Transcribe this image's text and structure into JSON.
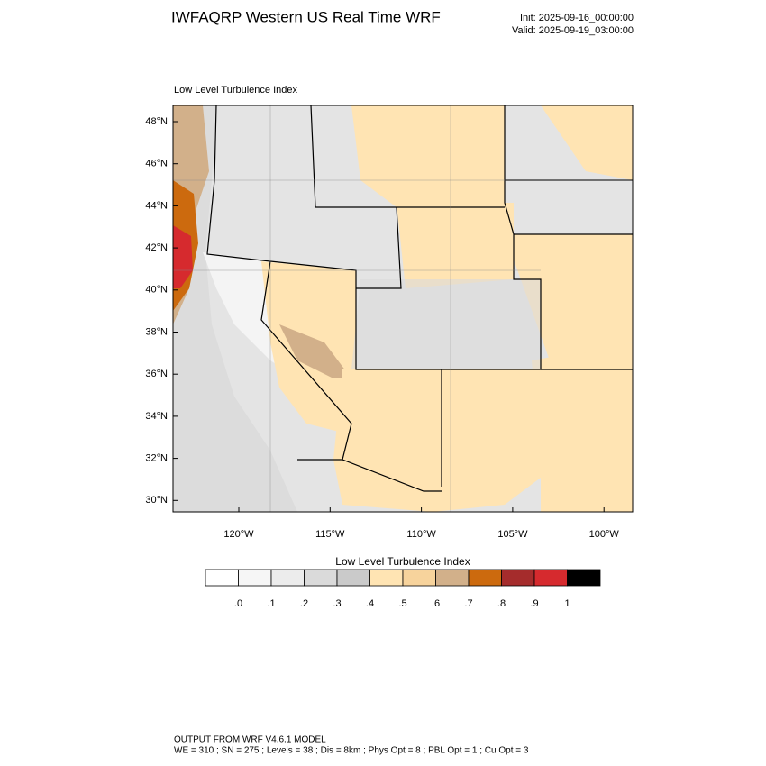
{
  "header": {
    "title": "IWFAQRP Western US Real Time WRF",
    "init": "Init: 2025-09-16_00:00:00",
    "valid": "Valid: 2025-09-19_03:00:00"
  },
  "map": {
    "subtitle": "Low Level Turbulence Index",
    "lat_labels": [
      "48°N",
      "46°N",
      "44°N",
      "42°N",
      "40°N",
      "38°N",
      "36°N",
      "34°N",
      "32°N",
      "30°N"
    ],
    "lon_labels": [
      "120°W",
      "115°W",
      "110°W",
      "105°W",
      "100°W"
    ]
  },
  "colorbar": {
    "title": "Low Level Turbulence Index",
    "colors": [
      "#ffffff",
      "#f6f6f6",
      "#ececec",
      "#dadada",
      "#cacaca",
      "#ffe4b3",
      "#f7d39c",
      "#d2b08a",
      "#cc6a0e",
      "#a52c2c",
      "#d62a2e",
      "#000000"
    ],
    "labels": [
      ".0",
      ".1",
      ".2",
      ".3",
      ".4",
      ".5",
      ".6",
      ".7",
      ".8",
      ".9",
      "1"
    ]
  },
  "footer": {
    "line1": "OUTPUT FROM WRF V4.6.1 MODEL",
    "line2": "WE = 310 ; SN = 275 ; Levels = 38 ; Dis = 8km ; Phys Opt = 8 ; PBL Opt = 1 ; Cu Opt = 3"
  }
}
